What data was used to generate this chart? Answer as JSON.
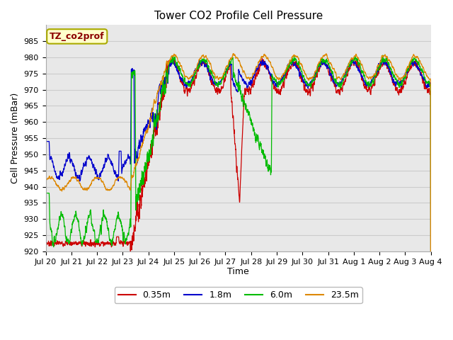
{
  "title": "Tower CO2 Profile Cell Pressure",
  "ylabel": "Cell Pressure (mBar)",
  "xlabel": "Time",
  "ylim": [
    920,
    990
  ],
  "yticks": [
    920,
    925,
    930,
    935,
    940,
    945,
    950,
    955,
    960,
    965,
    970,
    975,
    980,
    985
  ],
  "series_colors": [
    "#cc0000",
    "#0000cc",
    "#00bb00",
    "#dd8800"
  ],
  "series_labels": [
    "0.35m",
    "1.8m",
    "6.0m",
    "23.5m"
  ],
  "legend_label": "TZ_co2prof",
  "legend_bg": "#ffffcc",
  "legend_border": "#aaaa00",
  "bg_color": "#ffffff",
  "plot_bg": "#e8e8e8",
  "grid_color": "#d8d8d8",
  "n_points": 3000,
  "title_fontsize": 11,
  "axis_label_fontsize": 9,
  "tick_fontsize": 8
}
